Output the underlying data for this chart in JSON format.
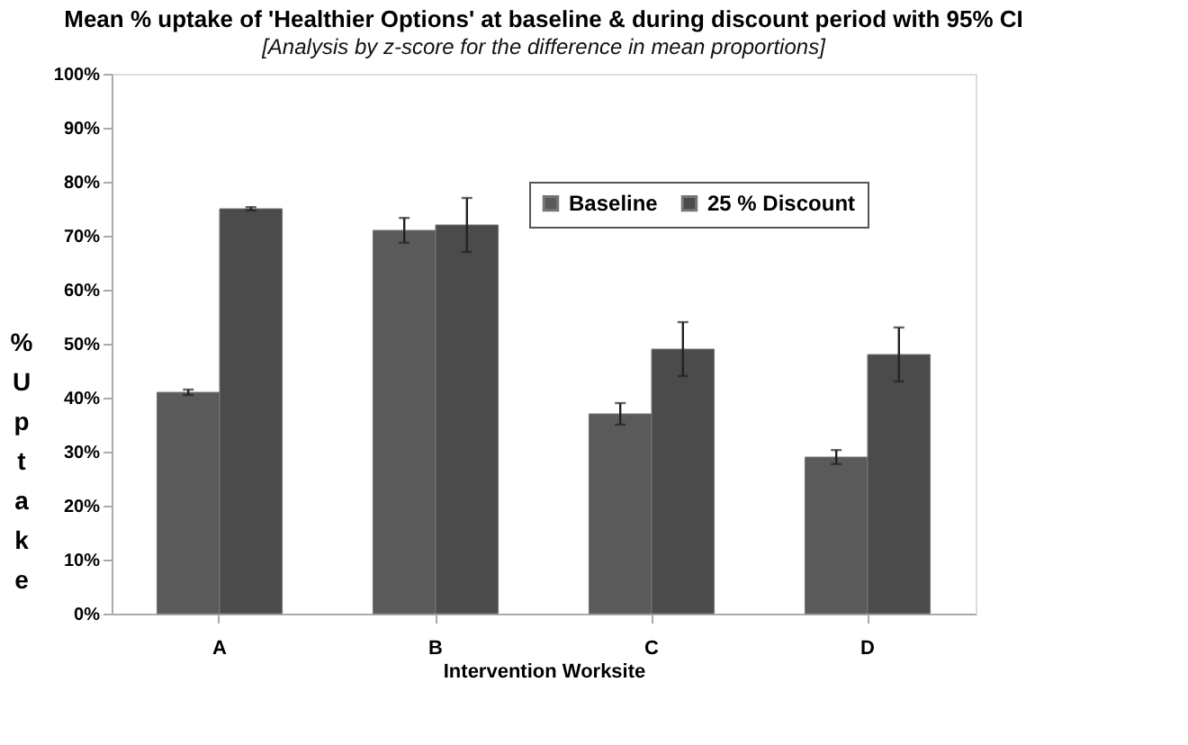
{
  "chart_data": {
    "type": "bar",
    "title": "Mean % uptake of 'Healthier Options' at baseline & during discount period with 95% CI",
    "subtitle": "[Analysis by z-score for the difference in mean proportions]",
    "xlabel": "Intervention Worksite",
    "ylabel": "% Uptake",
    "categories": [
      "A",
      "B",
      "C",
      "D"
    ],
    "series": [
      {
        "name": "Baseline",
        "color": "#5a5a5a",
        "values": [
          41,
          71,
          37,
          29
        ],
        "errors": [
          0.5,
          2.3,
          2,
          1.3
        ]
      },
      {
        "name": "25 % Discount",
        "color": "#4b4b4b",
        "values": [
          75,
          72,
          49,
          48
        ],
        "errors": [
          0.3,
          5,
          5,
          5
        ]
      }
    ],
    "ylim": [
      0,
      100
    ],
    "yticks": [
      {
        "value": 0,
        "label": "0%"
      },
      {
        "value": 10,
        "label": "10%"
      },
      {
        "value": 20,
        "label": "20%"
      },
      {
        "value": 30,
        "label": "30%"
      },
      {
        "value": 40,
        "label": "40%"
      },
      {
        "value": 50,
        "label": "50%"
      },
      {
        "value": 60,
        "label": "60%"
      },
      {
        "value": 70,
        "label": "70%"
      },
      {
        "value": 80,
        "label": "80%"
      },
      {
        "value": 90,
        "label": "90%"
      },
      {
        "value": 100,
        "label": "100%"
      }
    ],
    "grid": false,
    "legend": "top right"
  }
}
